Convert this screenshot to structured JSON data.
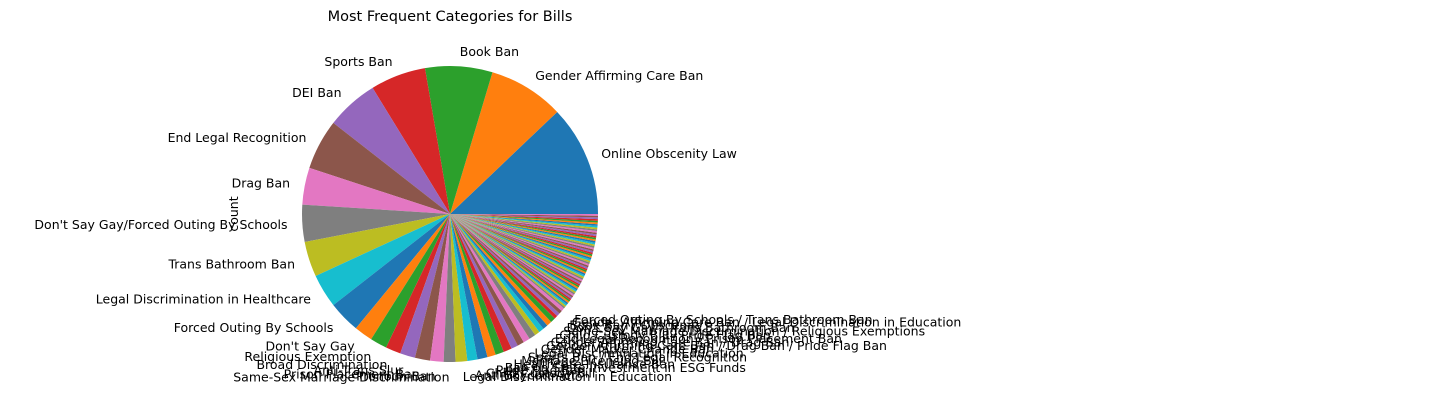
{
  "chart_data": {
    "type": "pie",
    "title": "Most Frequent Categories for Bills",
    "ylabel": "count",
    "xlabel": "",
    "start_angle_deg": 0,
    "direction": "counterclockwise",
    "labeled_slices": [
      {
        "label": "Online Obscenity Law",
        "value": 66
      },
      {
        "label": "Gender Affirming Care Ban",
        "value": 45
      },
      {
        "label": "Book Ban",
        "value": 40
      },
      {
        "label": "Sports Ban",
        "value": 33
      },
      {
        "label": "DEI Ban",
        "value": 31
      },
      {
        "label": "End Legal Recognition",
        "value": 30
      },
      {
        "label": "Drag Ban",
        "value": 22
      },
      {
        "label": "Don't Say Gay/Forced Outing By Schools",
        "value": 22
      },
      {
        "label": "Trans Bathroom Ban",
        "value": 21
      },
      {
        "label": "Legal Discrimination in Healthcare",
        "value": 20
      },
      {
        "label": "Forced Outing By Schools",
        "value": 19
      },
      {
        "label": "Don't Say Gay",
        "value": 11
      },
      {
        "label": "Religious Exemption",
        "value": 10
      },
      {
        "label": "Broad Discrimination",
        "value": 9
      },
      {
        "label": "Anti-Trans Slur",
        "value": 9
      },
      {
        "label": "Prison Placement Ban",
        "value": 9
      },
      {
        "label": "Pronoun Ban",
        "value": 8
      },
      {
        "label": "Same-Sex Marriage Discrimination",
        "value": 7
      },
      {
        "label": "Legal Discrimination in Education",
        "value": 7
      },
      {
        "label": "Anti-Boycott Act",
        "value": 6
      },
      {
        "label": "Child Custody Bill",
        "value": 6
      },
      {
        "label": "Pride Flag Ban",
        "value": 5
      },
      {
        "label": "Ban on State Investment in ESG Funds",
        "value": 5
      },
      {
        "label": "Healthcare Insurance Ban",
        "value": 5
      },
      {
        "label": "Marriage Licensing Bill",
        "value": 4
      },
      {
        "label": "Sports Ban / End Legal Recognition",
        "value": 4
      },
      {
        "label": "Legal Discrimination in Education",
        "value": 4
      },
      {
        "label": "Gender Marker Change Ban",
        "value": 4
      },
      {
        "label": "Gender Affirming Care Ban / Drag Ban / Pride Flag Ban",
        "value": 3
      },
      {
        "label": "Gender Affirming Care Ban / Drag Ban",
        "value": 3
      },
      {
        "label": "End Legal Recognition / Prison Placement Ban",
        "value": 3
      },
      {
        "label": "Child Custody Bill / Pride Flag Ban",
        "value": 3
      },
      {
        "label": "Same-Sex Marriage Discrimination / Religious Exemptions",
        "value": 3
      },
      {
        "label": "Don't Say Gay / Trans Bathroom Ban",
        "value": 2
      },
      {
        "label": "Book Ban / Obscenity",
        "value": 2
      },
      {
        "label": "Gender Affirming Care Ban / Legal Discrimination in Education",
        "value": 2
      },
      {
        "label": "Forced Outing By Schools / Trans Bathroom Ban",
        "value": 2
      }
    ],
    "other_slices_count": 60,
    "other_slice_value": 1,
    "colors": [
      "#1f77b4",
      "#ff7f0e",
      "#2ca02c",
      "#d62728",
      "#9467bd",
      "#8c564b",
      "#e377c2",
      "#7f7f7f",
      "#bcbd22",
      "#17becf"
    ]
  }
}
